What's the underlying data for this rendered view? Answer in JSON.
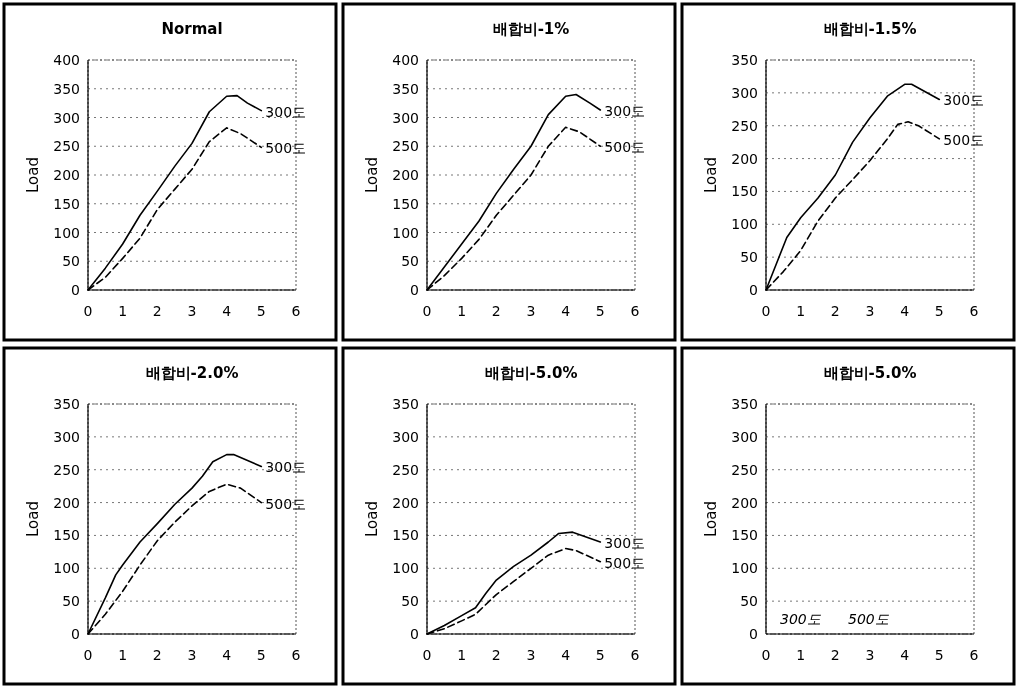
{
  "chart_data": [
    {
      "type": "line",
      "title": "Normal",
      "ylabel": "Load",
      "xlim": [
        0,
        6
      ],
      "xticks": [
        0,
        1,
        2,
        3,
        4,
        5,
        6
      ],
      "ylim": [
        0,
        400
      ],
      "yticks": [
        0,
        50,
        100,
        150,
        200,
        250,
        300,
        350,
        400
      ],
      "grid": "y",
      "series": [
        {
          "name": "300도",
          "color": "#000000",
          "line_style": "solid",
          "x": [
            0,
            0.5,
            1,
            1.5,
            2,
            2.5,
            3,
            3.5,
            4,
            4.3,
            4.6,
            5
          ],
          "values": [
            0,
            38,
            80,
            130,
            172,
            215,
            255,
            310,
            337,
            338,
            325,
            312
          ]
        },
        {
          "name": "500도",
          "color": "#000000",
          "line_style": "dashed",
          "x": [
            0,
            0.5,
            1,
            1.5,
            2,
            2.5,
            3,
            3.5,
            4,
            4.4,
            5
          ],
          "values": [
            0,
            22,
            55,
            90,
            140,
            175,
            210,
            258,
            282,
            272,
            248
          ]
        }
      ]
    },
    {
      "type": "line",
      "title": "배합비-1%",
      "ylabel": "Load",
      "xlim": [
        0,
        6
      ],
      "xticks": [
        0,
        1,
        2,
        3,
        4,
        5,
        6
      ],
      "ylim": [
        0,
        400
      ],
      "yticks": [
        0,
        50,
        100,
        150,
        200,
        250,
        300,
        350,
        400
      ],
      "grid": "y",
      "series": [
        {
          "name": "300도",
          "color": "#000000",
          "line_style": "solid",
          "x": [
            0,
            0.5,
            1,
            1.5,
            2,
            2.5,
            3,
            3.5,
            4,
            4.3,
            4.7,
            5
          ],
          "values": [
            0,
            40,
            80,
            120,
            168,
            210,
            250,
            305,
            337,
            340,
            325,
            313
          ]
        },
        {
          "name": "500도",
          "color": "#000000",
          "line_style": "dashed",
          "x": [
            0,
            0.5,
            1,
            1.5,
            2,
            2.5,
            3,
            3.5,
            4,
            4.4,
            5
          ],
          "values": [
            0,
            25,
            55,
            88,
            130,
            165,
            200,
            250,
            283,
            275,
            250
          ]
        }
      ]
    },
    {
      "type": "line",
      "title": "배합비-1.5%",
      "ylabel": "Load",
      "xlim": [
        0,
        6
      ],
      "xticks": [
        0,
        1,
        2,
        3,
        4,
        5,
        6
      ],
      "ylim": [
        0,
        350
      ],
      "yticks": [
        0,
        50,
        100,
        150,
        200,
        250,
        300,
        350
      ],
      "grid": "y",
      "series": [
        {
          "name": "300도",
          "color": "#000000",
          "line_style": "solid",
          "x": [
            0,
            0.3,
            0.6,
            1,
            1.5,
            2,
            2.5,
            3,
            3.5,
            4,
            4.2,
            5
          ],
          "values": [
            0,
            40,
            80,
            110,
            140,
            175,
            225,
            262,
            295,
            313,
            313,
            290
          ]
        },
        {
          "name": "500도",
          "color": "#000000",
          "line_style": "dashed",
          "x": [
            0,
            0.5,
            1,
            1.5,
            2,
            2.5,
            3,
            3.5,
            3.8,
            4.1,
            4.4,
            5
          ],
          "values": [
            0,
            28,
            60,
            105,
            140,
            168,
            197,
            230,
            252,
            256,
            250,
            230
          ]
        }
      ]
    },
    {
      "type": "line",
      "title": "배합비-2.0%",
      "ylabel": "Load",
      "xlim": [
        0,
        6
      ],
      "xticks": [
        0,
        1,
        2,
        3,
        4,
        5,
        6
      ],
      "ylim": [
        0,
        350
      ],
      "yticks": [
        0,
        50,
        100,
        150,
        200,
        250,
        300,
        350
      ],
      "grid": "y",
      "series": [
        {
          "name": "300도",
          "color": "#000000",
          "line_style": "solid",
          "x": [
            0,
            0.5,
            0.8,
            1,
            1.5,
            2,
            2.5,
            3,
            3.3,
            3.6,
            4,
            4.2,
            5
          ],
          "values": [
            0,
            55,
            90,
            105,
            140,
            168,
            197,
            222,
            240,
            262,
            273,
            273,
            255
          ]
        },
        {
          "name": "500도",
          "color": "#000000",
          "line_style": "dashed",
          "x": [
            0,
            0.5,
            1,
            1.5,
            2,
            2.5,
            3,
            3.5,
            4,
            4.4,
            5
          ],
          "values": [
            0,
            30,
            65,
            105,
            142,
            170,
            195,
            217,
            228,
            222,
            200
          ]
        }
      ]
    },
    {
      "type": "line",
      "title": "배합비-5.0%",
      "ylabel": "Load",
      "xlim": [
        0,
        6
      ],
      "xticks": [
        0,
        1,
        2,
        3,
        4,
        5,
        6
      ],
      "ylim": [
        0,
        350
      ],
      "yticks": [
        0,
        50,
        100,
        150,
        200,
        250,
        300,
        350
      ],
      "grid": "y",
      "series": [
        {
          "name": "300도",
          "color": "#000000",
          "line_style": "solid",
          "x": [
            0,
            0.5,
            1,
            1.4,
            1.7,
            2,
            2.5,
            3,
            3.5,
            3.8,
            4.2,
            5
          ],
          "values": [
            0,
            13,
            28,
            40,
            62,
            82,
            103,
            120,
            140,
            153,
            155,
            140
          ]
        },
        {
          "name": "500도",
          "color": "#000000",
          "line_style": "dashed",
          "x": [
            0,
            0.5,
            1,
            1.4,
            2,
            2.5,
            3,
            3.5,
            4,
            4.3,
            5
          ],
          "values": [
            0,
            8,
            20,
            30,
            60,
            80,
            100,
            120,
            130,
            127,
            110
          ]
        }
      ]
    },
    {
      "type": "line",
      "title": "배합비-5.0%",
      "ylabel": "Load",
      "xlim": [
        0,
        6
      ],
      "xticks": [
        0,
        1,
        2,
        3,
        4,
        5,
        6
      ],
      "ylim": [
        0,
        350
      ],
      "yticks": [
        0,
        50,
        100,
        150,
        200,
        250,
        300,
        350
      ],
      "grid": "y",
      "annotations": [
        "300도",
        "500도"
      ]
    }
  ]
}
